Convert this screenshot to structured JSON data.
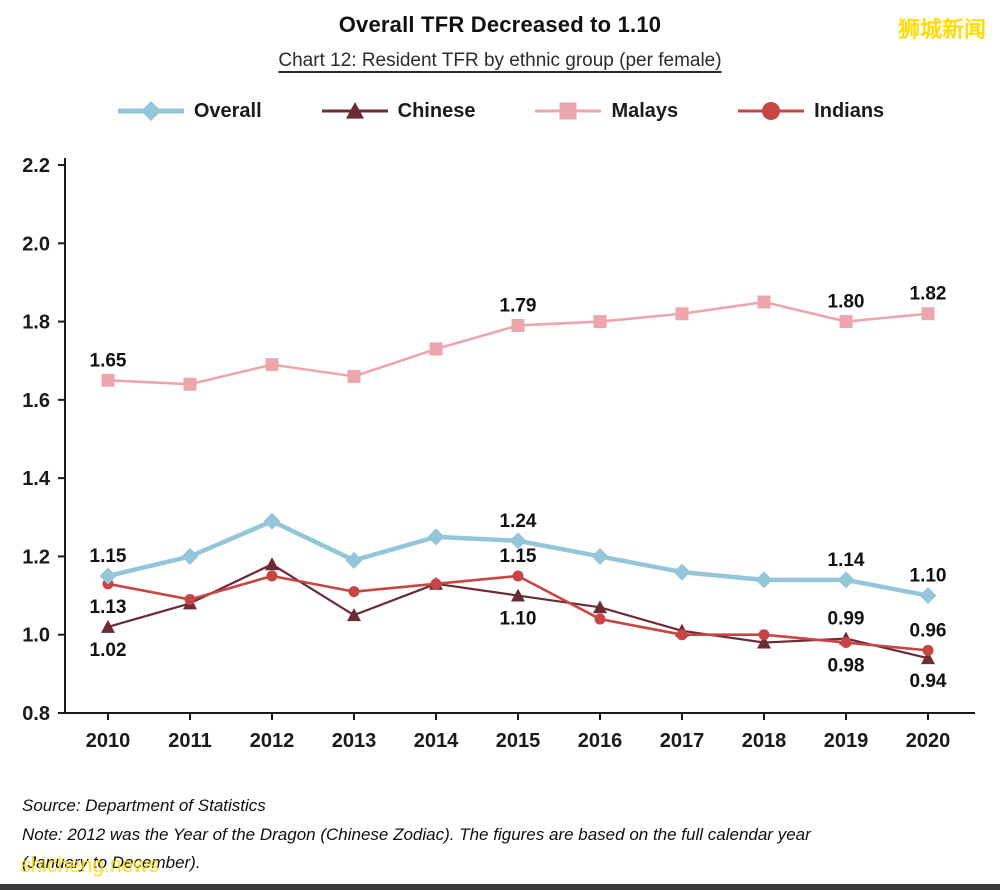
{
  "header": {
    "title": "Overall TFR Decreased to 1.10",
    "subtitle": "Chart 12: Resident TFR by ethnic group (per female)"
  },
  "watermark": {
    "top_right": "狮城新闻",
    "bottom_left": "shicheng.news",
    "color": "#FFDD00"
  },
  "footer": {
    "source": "Source: Department of Statistics",
    "note_line1": "Note: 2012 was the Year of the Dragon (Chinese Zodiac). The figures are based on the full calendar year",
    "note_line2": "(January to December)."
  },
  "chart_data": {
    "type": "line",
    "title": "Overall TFR Decreased to 1.10",
    "subtitle": "Chart 12: Resident TFR by ethnic group (per female)",
    "x": [
      2010,
      2011,
      2012,
      2013,
      2014,
      2015,
      2016,
      2017,
      2018,
      2019,
      2020
    ],
    "xlabel": "",
    "ylabel": "",
    "ylim": [
      0.8,
      2.2
    ],
    "ytick_step": 0.2,
    "grid": false,
    "legend_position": "top",
    "axis_color": "#1a1a1a",
    "label_color": "#111111",
    "series": [
      {
        "name": "Overall",
        "color": "#93C6D8",
        "marker": "diamond",
        "line_width": 4.5,
        "marker_size": 7.5,
        "values": [
          1.15,
          1.2,
          1.29,
          1.19,
          1.25,
          1.24,
          1.2,
          1.16,
          1.14,
          1.14,
          1.1
        ]
      },
      {
        "name": "Chinese",
        "color": "#6C2B35",
        "marker": "triangle",
        "line_width": 2.2,
        "marker_size": 7,
        "values": [
          1.02,
          1.08,
          1.18,
          1.05,
          1.13,
          1.1,
          1.07,
          1.01,
          0.98,
          0.99,
          0.94
        ]
      },
      {
        "name": "Malays",
        "color": "#EDA6AD",
        "marker": "square",
        "line_width": 2.6,
        "marker_size": 6.5,
        "values": [
          1.65,
          1.64,
          1.69,
          1.66,
          1.73,
          1.79,
          1.8,
          1.82,
          1.85,
          1.8,
          1.82
        ]
      },
      {
        "name": "Indians",
        "color": "#C84545",
        "marker": "circle",
        "line_width": 2.6,
        "marker_size": 5.5,
        "values": [
          1.13,
          1.09,
          1.15,
          1.11,
          1.13,
          1.15,
          1.04,
          1.0,
          1.0,
          0.98,
          0.96
        ]
      }
    ],
    "draw_order": [
      "Malays",
      "Chinese",
      "Indians",
      "Overall"
    ],
    "point_labels": [
      {
        "series": "Malays",
        "year": 2010,
        "text": "1.65",
        "position": "above"
      },
      {
        "series": "Malays",
        "year": 2015,
        "text": "1.79",
        "position": "above"
      },
      {
        "series": "Malays",
        "year": 2019,
        "text": "1.80",
        "position": "above"
      },
      {
        "series": "Malays",
        "year": 2020,
        "text": "1.82",
        "position": "above"
      },
      {
        "series": "Overall",
        "year": 2010,
        "text": "1.15",
        "position": "above"
      },
      {
        "series": "Overall",
        "year": 2015,
        "text": "1.24",
        "position": "above"
      },
      {
        "series": "Overall",
        "year": 2019,
        "text": "1.14",
        "position": "above"
      },
      {
        "series": "Overall",
        "year": 2020,
        "text": "1.10",
        "position": "above"
      },
      {
        "series": "Indians",
        "year": 2010,
        "text": "1.13",
        "position": "below"
      },
      {
        "series": "Indians",
        "year": 2015,
        "text": "1.15",
        "position": "above"
      },
      {
        "series": "Indians",
        "year": 2019,
        "text": "0.98",
        "position": "below"
      },
      {
        "series": "Indians",
        "year": 2020,
        "text": "0.96",
        "position": "above"
      },
      {
        "series": "Chinese",
        "year": 2010,
        "text": "1.02",
        "position": "below"
      },
      {
        "series": "Chinese",
        "year": 2015,
        "text": "1.10",
        "position": "below"
      },
      {
        "series": "Chinese",
        "year": 2019,
        "text": "0.99",
        "position": "above"
      },
      {
        "series": "Chinese",
        "year": 2020,
        "text": "0.94",
        "position": "below"
      }
    ]
  }
}
